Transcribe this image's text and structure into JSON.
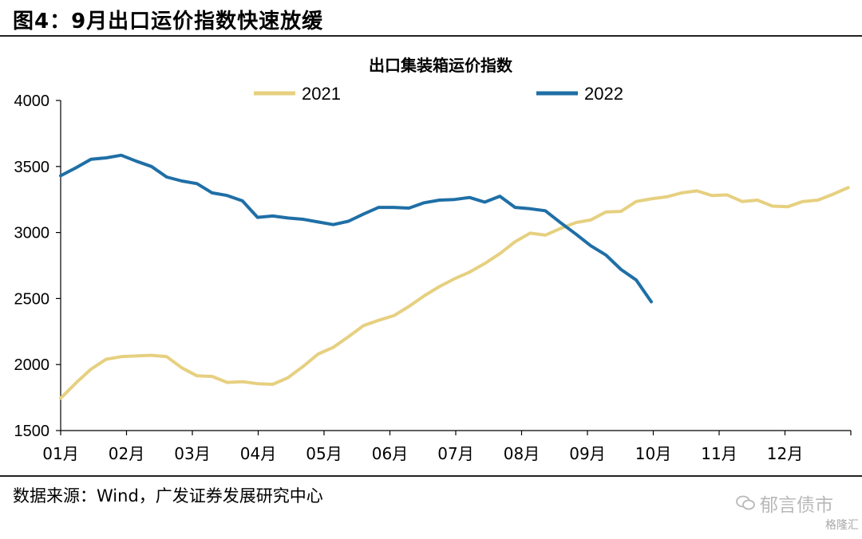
{
  "header": {
    "figure_title": "图4：9月出口运价指数快速放缓"
  },
  "footer": {
    "source": "数据来源：Wind，广发证券发展研究中心",
    "watermark": "郁言债市",
    "watermark2": "格隆汇"
  },
  "chart_data": {
    "type": "line",
    "title": "出口集装箱运价指数",
    "xlabel": "",
    "ylabel": "",
    "ylim": [
      1500,
      4000
    ],
    "yticks": [
      1500,
      2000,
      2500,
      3000,
      3500,
      4000
    ],
    "xtick_labels": [
      "01月",
      "02月",
      "03月",
      "04月",
      "05月",
      "06月",
      "07月",
      "08月",
      "09月",
      "10月",
      "11月",
      "12月"
    ],
    "xlim": [
      0,
      12
    ],
    "grid": false,
    "legend": "top",
    "series": [
      {
        "name": "2021",
        "color": "#e6d080",
        "x": [
          0.0,
          0.23,
          0.46,
          0.69,
          0.92,
          1.15,
          1.38,
          1.61,
          1.84,
          2.07,
          2.3,
          2.53,
          2.76,
          2.99,
          3.22,
          3.45,
          3.68,
          3.91,
          4.14,
          4.37,
          4.6,
          4.83,
          5.06,
          5.29,
          5.52,
          5.75,
          5.98,
          6.21,
          6.44,
          6.67,
          6.9,
          7.13,
          7.36,
          7.59,
          7.82,
          8.05,
          8.28,
          8.51,
          8.74,
          8.97,
          9.2,
          9.43,
          9.66,
          9.89,
          10.12,
          10.35,
          10.58,
          10.81,
          11.04,
          11.27,
          11.5,
          11.73,
          11.96
        ],
        "values": [
          1745,
          1860,
          1965,
          2040,
          2060,
          2065,
          2070,
          2060,
          1975,
          1915,
          1910,
          1865,
          1870,
          1855,
          1850,
          1900,
          1985,
          2080,
          2130,
          2210,
          2295,
          2335,
          2370,
          2440,
          2520,
          2590,
          2650,
          2700,
          2765,
          2840,
          2930,
          2995,
          2980,
          3030,
          3075,
          3095,
          3155,
          3160,
          3235,
          3255,
          3270,
          3300,
          3315,
          3280,
          3285,
          3235,
          3245,
          3200,
          3195,
          3235,
          3245,
          3290,
          3340
        ]
      },
      {
        "name": "2022",
        "color": "#1f6fa6",
        "x": [
          0.0,
          0.23,
          0.46,
          0.69,
          0.92,
          1.15,
          1.38,
          1.61,
          1.84,
          2.07,
          2.3,
          2.53,
          2.76,
          2.99,
          3.22,
          3.45,
          3.68,
          3.91,
          4.14,
          4.37,
          4.6,
          4.83,
          5.06,
          5.29,
          5.52,
          5.75,
          5.98,
          6.21,
          6.44,
          6.67,
          6.9,
          7.13,
          7.36,
          7.59,
          7.82,
          8.05,
          8.28,
          8.51,
          8.74,
          8.97
        ],
        "values": [
          3430,
          3490,
          3555,
          3565,
          3585,
          3540,
          3500,
          3420,
          3390,
          3370,
          3300,
          3280,
          3240,
          3115,
          3125,
          3110,
          3100,
          3080,
          3060,
          3085,
          3140,
          3190,
          3190,
          3185,
          3225,
          3245,
          3250,
          3265,
          3230,
          3275,
          3190,
          3180,
          3165,
          3075,
          2990,
          2900,
          2830,
          2720,
          2640,
          2475
        ]
      }
    ]
  }
}
